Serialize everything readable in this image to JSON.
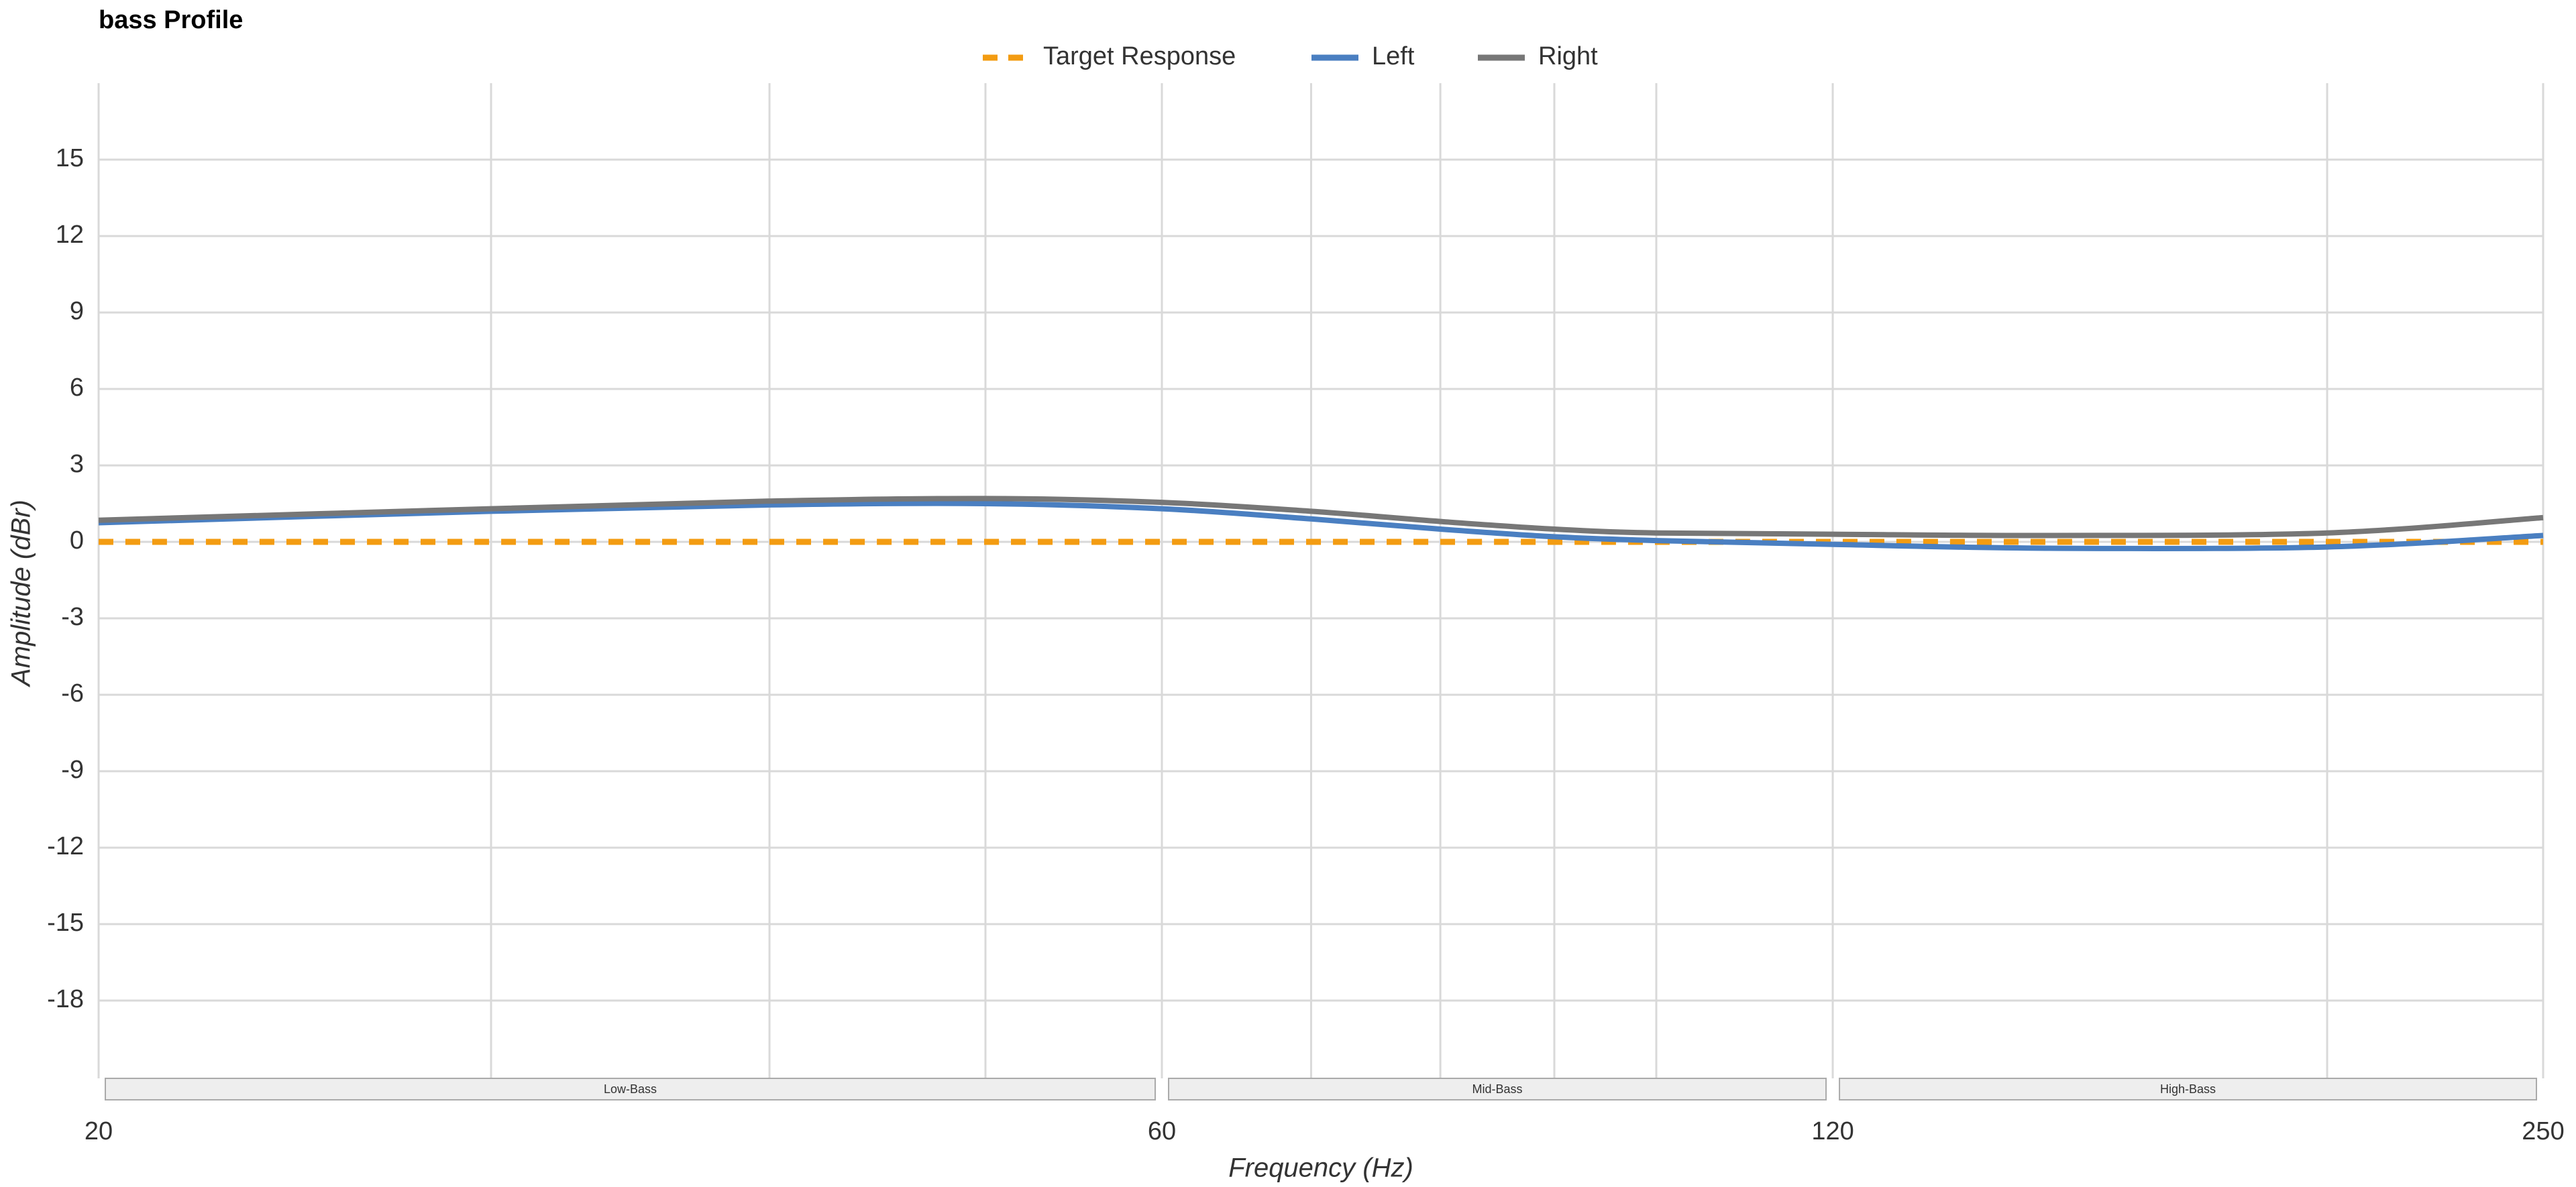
{
  "chart_data": {
    "type": "line",
    "title": "bass Profile",
    "x_label": "Frequency (Hz)",
    "y_label": "Amplitude (dBr)",
    "x": [
      20,
      30,
      40,
      50,
      60,
      70,
      80,
      90,
      100,
      120,
      150,
      200,
      250
    ],
    "series": [
      {
        "name": "Target Response",
        "color": "#f39c12",
        "dashed": true,
        "values": [
          0,
          0,
          0,
          0,
          0,
          0,
          0,
          0,
          0,
          0,
          0,
          0,
          0
        ]
      },
      {
        "name": "Left",
        "color": "#4a7fc1",
        "values": [
          0.75,
          1.2,
          1.45,
          1.5,
          1.3,
          0.9,
          0.5,
          0.2,
          0.05,
          -0.1,
          -0.25,
          -0.2,
          0.25
        ]
      },
      {
        "name": "Right",
        "color": "#777777",
        "values": [
          0.85,
          1.3,
          1.6,
          1.7,
          1.55,
          1.2,
          0.8,
          0.5,
          0.35,
          0.3,
          0.25,
          0.35,
          0.95
        ]
      }
    ],
    "xscale": "log",
    "xlim": [
      20,
      250
    ],
    "xticks": [
      20,
      60,
      120,
      250
    ],
    "xminor": [
      30,
      40,
      50,
      70,
      80,
      90,
      100,
      200
    ],
    "ylim": [
      -22,
      18
    ],
    "yticks": [
      -18,
      -15,
      -12,
      -9,
      -6,
      -3,
      0,
      3,
      6,
      9,
      12,
      15
    ],
    "bands": [
      {
        "label": "Low-Bass",
        "range": [
          20,
          60
        ]
      },
      {
        "label": "Mid-Bass",
        "range": [
          60,
          120
        ]
      },
      {
        "label": "High-Bass",
        "range": [
          120,
          250
        ]
      }
    ],
    "grid": true,
    "legend": "top"
  }
}
